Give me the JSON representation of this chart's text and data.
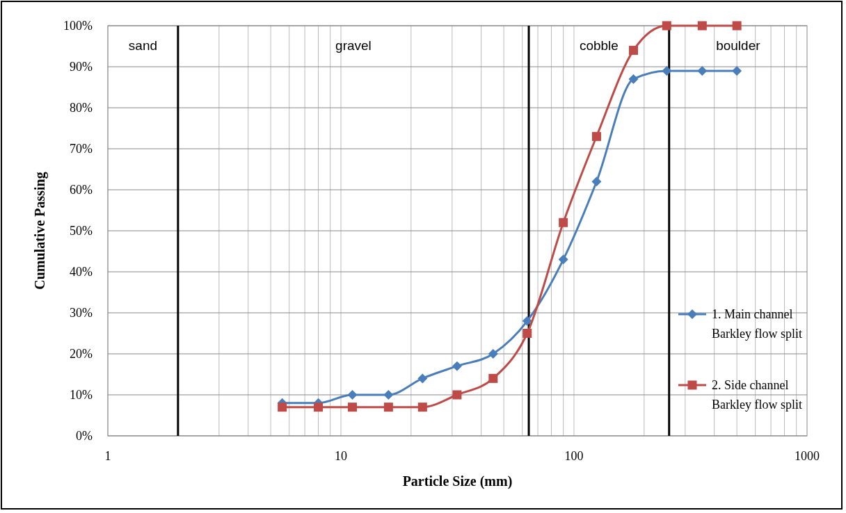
{
  "chart_data": {
    "type": "line",
    "xlabel": "Particle Size (mm)",
    "ylabel": "Cumulative Passing",
    "log": "x",
    "xlim": [
      1,
      1000
    ],
    "xticks": [
      1,
      10,
      100,
      1000
    ],
    "ylim": [
      0,
      100
    ],
    "yticks": [
      {
        "value": 0,
        "label": "0%"
      },
      {
        "value": 10,
        "label": "10%"
      },
      {
        "value": 20,
        "label": "20%"
      },
      {
        "value": 30,
        "label": "30%"
      },
      {
        "value": 40,
        "label": "40%"
      },
      {
        "value": 50,
        "label": "50%"
      },
      {
        "value": 60,
        "label": "60%"
      },
      {
        "value": 70,
        "label": "70%"
      },
      {
        "value": 80,
        "label": "80%"
      },
      {
        "value": 90,
        "label": "90%"
      },
      {
        "value": 100,
        "label": "100%"
      }
    ],
    "grid": true,
    "legend": "right",
    "line_style": "solid",
    "x": [
      5.6,
      8,
      11.2,
      16,
      22.4,
      31.5,
      45,
      63,
      90,
      125,
      180,
      250,
      355,
      500
    ],
    "series": [
      {
        "name": "1. Main channel Barkley flow split",
        "color": "#4a7ebb",
        "marker": "diamond",
        "values": [
          8,
          8,
          10,
          10,
          14,
          17,
          20,
          28,
          43,
          62,
          87,
          89,
          89,
          89
        ]
      },
      {
        "name": "2. Side channel Barkley flow split",
        "color": "#be4b48",
        "marker": "square",
        "values": [
          7,
          7,
          7,
          7,
          7,
          10,
          14,
          25,
          52,
          73,
          94,
          100,
          100,
          100
        ]
      }
    ],
    "ref_lines": [
      {
        "axis": "x",
        "value": 2,
        "color": "#000000"
      },
      {
        "axis": "x",
        "value": 64,
        "color": "#000000"
      },
      {
        "axis": "x",
        "value": 256,
        "color": "#000000"
      }
    ],
    "annotations": [
      "sand",
      "gravel",
      "cobble",
      "boulder"
    ]
  }
}
